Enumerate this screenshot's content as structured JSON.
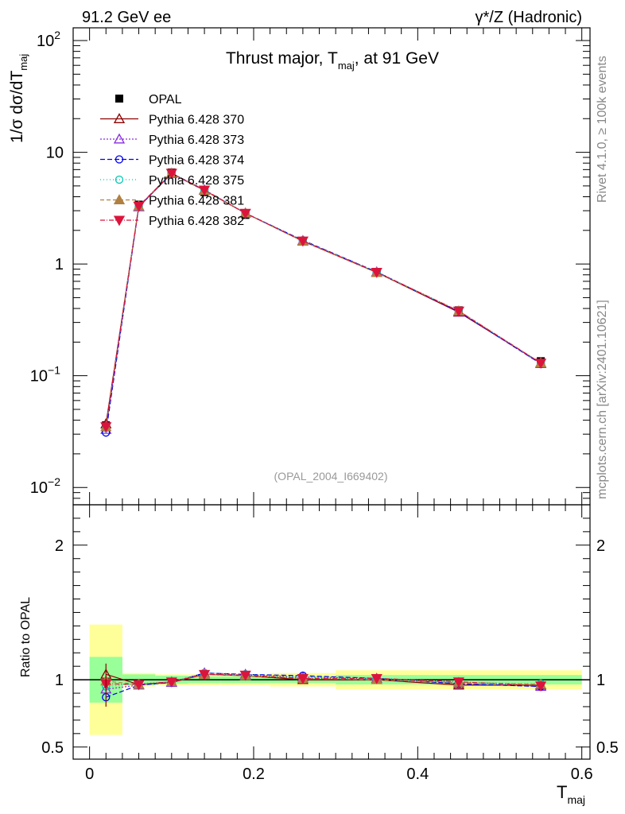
{
  "header": {
    "left": "91.2 GeV ee",
    "right": "γ*/Z (Hadronic)"
  },
  "side_labels": {
    "rivet": "Rivet 4.1.0, ≥ 100k events",
    "mcplots": "mcplots.cern.ch [arXiv:2401.10621]"
  },
  "chart_data": {
    "type": "line",
    "title": "Thrust major, T_maj, at 91 GeV",
    "title_parts": {
      "main": "Thrust major, T",
      "sub": "maj",
      "tail": ", at 91 GeV"
    },
    "analysis_id": "(OPAL_2004_I669402)",
    "ylabel_main": {
      "prefix": "1/σ  dσ/dT",
      "sub": "maj"
    },
    "ylabel_ratio": "Ratio to OPAL",
    "xlabel": {
      "main": "T",
      "sub": "maj"
    },
    "xlim": [
      -0.02,
      0.61
    ],
    "ylim_main": [
      0.007,
      130
    ],
    "ylim_ratio": [
      0.41,
      2.3
    ],
    "y_scale_main": "log",
    "x_ticks": [
      {
        "v": 0,
        "label": "0"
      },
      {
        "v": 0.2,
        "label": "0.2"
      },
      {
        "v": 0.4,
        "label": "0.4"
      },
      {
        "v": 0.6,
        "label": "0.6"
      }
    ],
    "y_ticks_main": [
      {
        "v": 0.01,
        "base": "10",
        "exp": "−2"
      },
      {
        "v": 0.1,
        "base": "10",
        "exp": "−1"
      },
      {
        "v": 1,
        "base": "1",
        "exp": ""
      },
      {
        "v": 10,
        "base": "10",
        "exp": ""
      },
      {
        "v": 100,
        "base": "10",
        "exp": "2"
      }
    ],
    "y_ticks_ratio": [
      {
        "v": 0.5,
        "label": "0.5"
      },
      {
        "v": 1,
        "label": "1"
      },
      {
        "v": 2,
        "label": "2"
      }
    ],
    "legend_position": "top-left",
    "x": [
      0.02,
      0.06,
      0.1,
      0.14,
      0.19,
      0.26,
      0.35,
      0.45,
      0.55
    ],
    "bin_edges": [
      0.0,
      0.04,
      0.08,
      0.12,
      0.16,
      0.22,
      0.3,
      0.4,
      0.5,
      0.6
    ],
    "data": {
      "name": "OPAL",
      "values": [
        0.036,
        3.4,
        6.6,
        4.4,
        2.75,
        1.6,
        0.84,
        0.385,
        0.135
      ],
      "ratio_band_inner": [
        0.17,
        0.04,
        0.03,
        0.025,
        0.025,
        0.025,
        0.035,
        0.035,
        0.035
      ],
      "ratio_band_outer": [
        0.41,
        0.05,
        0.04,
        0.04,
        0.04,
        0.05,
        0.07,
        0.07,
        0.07
      ]
    },
    "series": [
      {
        "name": "Pythia 6.428 370",
        "color": "#8b0000",
        "marker": "triangle-open",
        "dash": "",
        "values": [
          0.037,
          3.25,
          6.45,
          4.55,
          2.85,
          1.6,
          0.84,
          0.37,
          0.13
        ],
        "ratio": [
          1.04,
          0.965,
          0.98,
          1.04,
          1.03,
          1.0,
          1.0,
          0.96,
          0.96
        ]
      },
      {
        "name": "Pythia 6.428 373",
        "color": "#8a2be2",
        "marker": "triangle-open",
        "dash": "2,2",
        "values": [
          0.033,
          3.25,
          6.45,
          4.6,
          2.85,
          1.62,
          0.85,
          0.375,
          0.128
        ],
        "ratio": [
          0.93,
          0.96,
          0.98,
          1.05,
          1.04,
          1.02,
          1.01,
          0.97,
          0.95
        ]
      },
      {
        "name": "Pythia 6.428 374",
        "color": "#0000ee",
        "marker": "circle-open",
        "dash": "6,3",
        "values": [
          0.031,
          3.25,
          6.5,
          4.6,
          2.85,
          1.63,
          0.85,
          0.375,
          0.128
        ],
        "ratio": [
          0.87,
          0.96,
          0.98,
          1.05,
          1.04,
          1.03,
          1.01,
          0.97,
          0.95
        ]
      },
      {
        "name": "Pythia 6.428 375",
        "color": "#00c8b4",
        "marker": "circle-open",
        "dash": "1,3",
        "values": [
          0.034,
          3.3,
          6.5,
          4.6,
          2.85,
          1.62,
          0.85,
          0.38,
          0.13
        ],
        "ratio": [
          0.95,
          0.97,
          0.985,
          1.05,
          1.04,
          1.02,
          1.01,
          0.98,
          0.97
        ]
      },
      {
        "name": "Pythia 6.428 381",
        "color": "#b08040",
        "marker": "triangle-filled",
        "dash": "5,3",
        "values": [
          0.035,
          3.3,
          6.5,
          4.55,
          2.85,
          1.6,
          0.84,
          0.38,
          0.13
        ],
        "ratio": [
          0.99,
          0.965,
          0.985,
          1.04,
          1.03,
          1.01,
          1.0,
          0.98,
          0.965
        ]
      },
      {
        "name": "Pythia 6.428 382",
        "color": "#dc143c",
        "marker": "triangle-down-filled",
        "dash": "6,2,1,2",
        "values": [
          0.035,
          3.3,
          6.5,
          4.6,
          2.85,
          1.61,
          0.845,
          0.38,
          0.13
        ],
        "ratio": [
          0.97,
          0.965,
          0.985,
          1.04,
          1.035,
          1.01,
          1.01,
          0.985,
          0.955
        ]
      }
    ]
  }
}
